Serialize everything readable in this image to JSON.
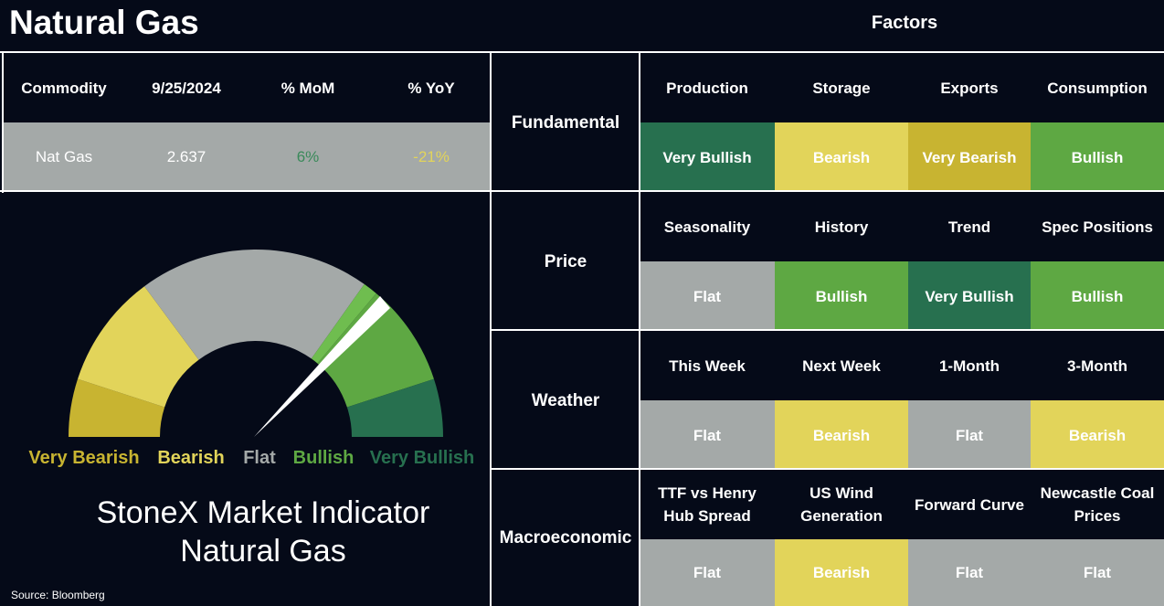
{
  "header": {
    "title": "Natural Gas",
    "factors_title": "Factors"
  },
  "commodity_table": {
    "columns": [
      "Commodity",
      "9/25/2024",
      "% MoM",
      "% YoY"
    ],
    "rows": [
      [
        "Nat Gas",
        "2.637",
        "6%",
        "-21%"
      ]
    ]
  },
  "gauge": {
    "labels": [
      {
        "text": "Very Bearish",
        "color": "#c8b431"
      },
      {
        "text": "Bearish",
        "color": "#e2d45a"
      },
      {
        "text": "Flat",
        "color": "#a4a9a8"
      },
      {
        "text": "Bullish",
        "color": "#5ea843"
      },
      {
        "text": "Very Bullish",
        "color": "#27704f"
      }
    ],
    "title_lines": [
      "StoneX Market Indicator",
      "Natural Gas"
    ]
  },
  "source": "Source: Bloomberg",
  "factor_groups": [
    {
      "name": "Fundamental",
      "factors": [
        {
          "name": "Production",
          "status": "Very Bullish",
          "color": "#27704f"
        },
        {
          "name": "Storage",
          "status": "Bearish",
          "color": "#e2d45a"
        },
        {
          "name": "Exports",
          "status": "Very Bearish",
          "color": "#c8b431"
        },
        {
          "name": "Consumption",
          "status": "Bullish",
          "color": "#5ea843"
        }
      ]
    },
    {
      "name": "Price",
      "factors": [
        {
          "name": "Seasonality",
          "status": "Flat",
          "color": "#a4a9a8"
        },
        {
          "name": "History",
          "status": "Bullish",
          "color": "#5ea843"
        },
        {
          "name": "Trend",
          "status": "Very Bullish",
          "color": "#27704f"
        },
        {
          "name": "Spec Positions",
          "status": "Bullish",
          "color": "#5ea843"
        }
      ]
    },
    {
      "name": "Weather",
      "factors": [
        {
          "name": "This Week",
          "status": "Flat",
          "color": "#a4a9a8"
        },
        {
          "name": "Next Week",
          "status": "Bearish",
          "color": "#e2d45a"
        },
        {
          "name": "1-Month",
          "status": "Flat",
          "color": "#a4a9a8"
        },
        {
          "name": "3-Month",
          "status": "Bearish",
          "color": "#e2d45a"
        }
      ]
    },
    {
      "name": "Macroeconomic",
      "factors": [
        {
          "name": "TTF vs Henry Hub Spread",
          "status": "Flat",
          "color": "#a4a9a8"
        },
        {
          "name": "US Wind Generation",
          "status": "Bearish",
          "color": "#e2d45a"
        },
        {
          "name": "Forward Curve",
          "status": "Flat",
          "color": "#a4a9a8"
        },
        {
          "name": "Newcastle Coal Prices",
          "status": "Flat",
          "color": "#a4a9a8"
        }
      ]
    }
  ]
}
